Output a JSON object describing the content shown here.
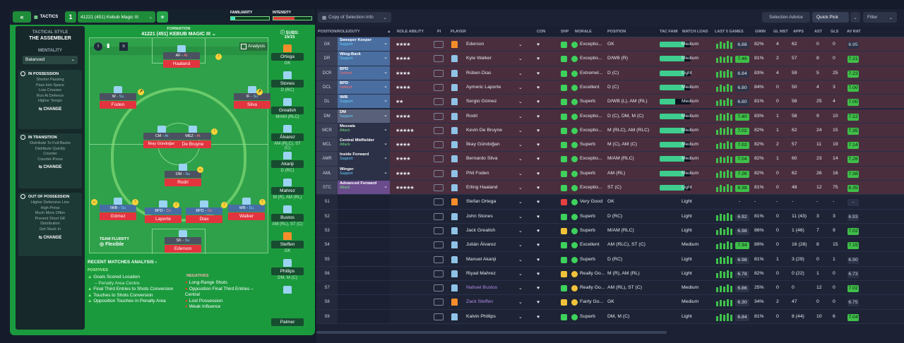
{
  "tactics": {
    "back": "«",
    "title": "TACTICS",
    "slot": "1",
    "name": "41221 (451) Kebub Magic III",
    "add": "+",
    "familiarity": "FAMILIARITY",
    "intensity": "INTENSITY"
  },
  "style": {
    "h": "TACTICAL STYLE",
    "v": "THE ASSEMBLER",
    "mh": "MENTALITY",
    "mv": "Balanced"
  },
  "in_possession": {
    "title": "IN POSSESSION",
    "items": [
      "Shorter Passing",
      "Pass Into Space",
      "Low Crosses",
      "Run At Defence",
      "Higher Tempo"
    ],
    "change": "CHANGE"
  },
  "in_transition": {
    "title": "IN TRANSITION",
    "items": [
      "Distribute To Full-Backs",
      "Distribute Quickly",
      "Counter",
      "Counter-Press"
    ],
    "change": "CHANGE"
  },
  "out_possession": {
    "title": "OUT OF POSSESSION",
    "items": [
      "Higher Defensive Line",
      "High Press",
      "Much More Often",
      "Prevent Short GK",
      "Distribution",
      "Get Stuck In"
    ],
    "change": "CHANGE"
  },
  "formation": {
    "label": "FORMATION",
    "name": "41221 (451) KEBUB MAGIC III",
    "analysis": "Analysis",
    "subs_label": "SUBS:",
    "subs_count": "15/15"
  },
  "pitch": [
    {
      "role": "AF",
      "duty": "At",
      "name": "Haaland"
    },
    {
      "role": "W",
      "duty": "Su",
      "name": "Foden"
    },
    {
      "role": "IF",
      "duty": "Su",
      "name": "Silva"
    },
    {
      "role": "CM",
      "duty": "At",
      "name": "İlkay Gündoğan"
    },
    {
      "role": "MEZ",
      "duty": "At",
      "name": "De Bruyne"
    },
    {
      "role": "DM",
      "duty": "Su",
      "name": "Rodri"
    },
    {
      "role": "IWB",
      "duty": "Su",
      "name": "Gómez"
    },
    {
      "role": "BPD",
      "duty": "De",
      "name": "Laporte"
    },
    {
      "role": "BPD",
      "duty": "De",
      "name": "Dias"
    },
    {
      "role": "WB",
      "duty": "Su",
      "name": "Walker"
    },
    {
      "role": "SK",
      "duty": "Su",
      "name": "Ederson"
    }
  ],
  "fluidity": {
    "label": "TEAM FLUIDITY",
    "value": "Flexible"
  },
  "subs": [
    {
      "n": "Ortega",
      "p": "GK"
    },
    {
      "n": "Stones",
      "p": "D (RC)"
    },
    {
      "n": "Grealish",
      "p": "M/AM (RLC)"
    },
    {
      "n": "Álvarez",
      "p": "AM (RLC), ST (C)"
    },
    {
      "n": "Akanji",
      "p": "D (RC)"
    },
    {
      "n": "Mahrez",
      "p": "M (R), AM (RL)"
    },
    {
      "n": "Bustos",
      "p": "AM (RL), ST (C)"
    },
    {
      "n": "Steffen",
      "p": "GK"
    },
    {
      "n": "Phillips",
      "p": "DM, M (C)"
    },
    {
      "n": "Palmer",
      "p": ""
    }
  ],
  "analysis": {
    "title": "RECENT MATCHES ANALYSIS ›",
    "pos_h": "POSITIVES",
    "neg_h": "NEGATIVES",
    "pos": [
      "Goals Scored Location",
      "– Penalty Area Centre",
      "Final Third Entries to Shots Conversion",
      "Touches to Shots Conversion",
      "Opposition Touches in Penalty Area"
    ],
    "neg": [
      "Long-Range Shots",
      "Opposition Final Third Entries – Central",
      "Lost Possession",
      "Weak Influence"
    ]
  },
  "toolbar": {
    "copy": "Copy of Selection Info",
    "advice": "Selection Advice",
    "quick": "Quick Pick",
    "filter": "Filter"
  },
  "columns": [
    "POSITION/ROLE/DUTY",
    "ROLE ABILITY",
    "PI",
    "PLAYER",
    "CON",
    "SHP",
    "MORALE",
    "POSITION",
    "TAC FAMI",
    "MATCH LOAD",
    "LAST 5 GAMES",
    "GWIN",
    "GL MST",
    "APPS",
    "AST",
    "GLS",
    "AV RAT"
  ],
  "rows": [
    {
      "pos": "GK",
      "r1": "Sweeper Keeper",
      "r2": "Support",
      "st": "★★★★",
      "p": "Ederson",
      "mo": "Exceptio...",
      "ps": "GK",
      "ml": "Medium",
      "l5": "6.88",
      "gw": "82%",
      "gm": "4",
      "ap": "62",
      "as": "0",
      "gl": "0",
      "ar": "6.95",
      "rc": "#4a6ea0",
      "dc": "#63d0ff",
      "tf": 0.8
    },
    {
      "pos": "DR",
      "r1": "Wing-Back",
      "r2": "Support",
      "st": "★★★★",
      "p": "Kyle Walker",
      "mo": "Exceptio...",
      "ps": "D/WB (R)",
      "ml": "Medium",
      "l5": "7.46",
      "gw": "81%",
      "gm": "2",
      "ap": "57",
      "as": "8",
      "gl": "0",
      "ar": "7.21",
      "rc": "#4a6ea0",
      "dc": "#63d0ff",
      "tf": 0.8
    },
    {
      "pos": "DCR",
      "r1": "BPD",
      "r2": "Defend",
      "st": "★★★★",
      "p": "Rúben Dias",
      "mo": "Extremel...",
      "ps": "D (C)",
      "ml": "Light",
      "l5": "6.84",
      "gw": "83%",
      "gm": "4",
      "ap": "59",
      "as": "5",
      "gl": "25",
      "ar": "7.23",
      "rc": "#4a6ea0",
      "dc": "#ff6a6a",
      "tf": 0.8
    },
    {
      "pos": "DCL",
      "r1": "BPD",
      "r2": "Defend",
      "st": "★★★★",
      "p": "Aymeric Laporte",
      "mo": "Excellent",
      "ps": "D (C)",
      "ml": "Medium",
      "l5": "6.80",
      "gw": "84%",
      "gm": "0",
      "ap": "50",
      "as": "4",
      "gl": "3",
      "ar": "7.00",
      "rc": "#4a6ea0",
      "dc": "#ff6a6a",
      "tf": 0.8
    },
    {
      "pos": "DL",
      "r1": "IWB",
      "r2": "Support",
      "st": "★★",
      "p": "Sergio Gómez",
      "mo": "Superb",
      "ps": "D/WB (L), AM (RL)",
      "ml": "Medium",
      "l5": "6.80",
      "gw": "81%",
      "gm": "0",
      "ap": "58",
      "as": "25",
      "gl": "4",
      "ar": "7.00",
      "rc": "#4a6ea0",
      "dc": "#63d0ff",
      "tf": 0.5
    },
    {
      "pos": "DM",
      "r1": "DM",
      "r2": "Support",
      "st": "★★★★",
      "p": "Rodri",
      "mo": "Exceptio...",
      "ps": "D (C), DM, M (C)",
      "ml": "Medium",
      "l5": "7.40",
      "gw": "83%",
      "gm": "1",
      "ap": "58",
      "as": "9",
      "gl": "10",
      "ar": "7.12",
      "rc": "#59607a",
      "dc": "#63d0ff",
      "tf": 0.8
    },
    {
      "pos": "MCR",
      "r1": "Mezzala",
      "r2": "Attack",
      "st": "★★★★★",
      "p": "Kevin De Bruyne",
      "mo": "Exceptio...",
      "ps": "M (RLC), AM (RLC)",
      "ml": "Medium",
      "l5": "7.02",
      "gw": "82%",
      "gm": "1",
      "ap": "62",
      "as": "24",
      "gl": "15",
      "ar": "7.35",
      "rc": "#2c3148",
      "dc": "#6de07a",
      "tf": 0.8
    },
    {
      "pos": "MCL",
      "r1": "Central Midfielder",
      "r2": "Attack",
      "st": "★★★★",
      "p": "İlkay Gündoğan",
      "mo": "Superb",
      "ps": "M (C), AM (C)",
      "ml": "Medium",
      "l5": "7.02",
      "gw": "82%",
      "gm": "2",
      "ap": "57",
      "as": "11",
      "gl": "19",
      "ar": "7.14",
      "rc": "#2c3148",
      "dc": "#6de07a",
      "tf": 0.8
    },
    {
      "pos": "AMR",
      "r1": "Inside Forward",
      "r2": "Support",
      "st": "★★★★",
      "p": "Bernardo Silva",
      "mo": "Exceptio...",
      "ps": "M/AM (RLC)",
      "ml": "Medium",
      "l5": "7.04",
      "gw": "82%",
      "gm": "1",
      "ap": "60",
      "as": "23",
      "gl": "14",
      "ar": "7.26",
      "rc": "#2c3148",
      "dc": "#63d0ff",
      "tf": 0.8
    },
    {
      "pos": "AML",
      "r1": "Winger",
      "r2": "Support",
      "st": "★★★★",
      "p": "Phil Foden",
      "mo": "Superb",
      "ps": "AM (RL)",
      "ml": "Medium",
      "l5": "7.26",
      "gw": "82%",
      "gm": "0",
      "ap": "62",
      "as": "26",
      "gl": "16",
      "ar": "7.38",
      "rc": "#2c3148",
      "dc": "#63d0ff",
      "tf": 0.8
    },
    {
      "pos": "STC",
      "r1": "Advanced Forward",
      "r2": "Attack",
      "st": "★★★★★",
      "p": "Erling Haaland",
      "mo": "Exceptio...",
      "ps": "ST (C)",
      "ml": "Light",
      "l5": "8.38",
      "gw": "81%",
      "gm": "0",
      "ap": "48",
      "as": "12",
      "gl": "75",
      "ar": "8.35",
      "rc": "#6a4b8c",
      "dc": "#6de07a",
      "tf": 0.8
    },
    {
      "pos": "S1",
      "p": "Stefan Ortega",
      "mo": "Very Good",
      "ps": "GK",
      "ml": "Light",
      "l5": "-",
      "gw": "-",
      "gm": "-",
      "ap": "-",
      "as": "-",
      "gl": "-",
      "ar": "-"
    },
    {
      "pos": "S2",
      "p": "John Stones",
      "mo": "Superb",
      "ps": "D (RC)",
      "ml": "Light",
      "l5": "6.92",
      "gw": "81%",
      "gm": "0",
      "ap": "11 (43)",
      "as": "3",
      "gl": "3",
      "ar": "6.93"
    },
    {
      "pos": "S3",
      "p": "Jack Grealish",
      "mo": "Superb",
      "ps": "M/AM (RLC)",
      "ml": "Light",
      "l5": "6.98",
      "gw": "86%",
      "gm": "0",
      "ap": "1 (46)",
      "as": "7",
      "gl": "9",
      "ar": "7.02"
    },
    {
      "pos": "S4",
      "p": "Julián Álvarez",
      "mo": "Excellent",
      "ps": "AM (RLC), ST (C)",
      "ml": "Medium",
      "l5": "7.34",
      "gw": "89%",
      "gm": "0",
      "ap": "16 (28)",
      "as": "8",
      "gl": "15",
      "ar": "7.15"
    },
    {
      "pos": "S5",
      "p": "Manuel Akanji",
      "mo": "Superb",
      "ps": "D (RC)",
      "ml": "Light",
      "l5": "6.98",
      "gw": "81%",
      "gm": "1",
      "ap": "3 (29)",
      "as": "0",
      "gl": "1",
      "ar": "6.90"
    },
    {
      "pos": "S6",
      "p": "Riyad Mahrez",
      "mo": "Really Go...",
      "ps": "M (R), AM (RL)",
      "ml": "Light",
      "l5": "6.78",
      "gw": "82%",
      "gm": "0",
      "ap": "0 (22)",
      "as": "1",
      "gl": "0",
      "ar": "6.73"
    },
    {
      "pos": "S7",
      "p": "Nahuel Bustos",
      "mo": "Really Go...",
      "ps": "AM (RL), ST (C)",
      "ml": "Medium",
      "l5": "6.86",
      "gw": "25%",
      "gm": "0",
      "ap": "0",
      "as": "12",
      "gl": "0",
      "ar": "7.02"
    },
    {
      "pos": "S8",
      "p": "Zack Steffen",
      "mo": "Fairly Go...",
      "ps": "GK",
      "ml": "Medium",
      "l5": "6.30",
      "gw": "34%",
      "gm": "2",
      "ap": "47",
      "as": "0",
      "gl": "0",
      "ar": "6.75"
    },
    {
      "pos": "S9",
      "p": "Kalvin Phillips",
      "mo": "Superb",
      "ps": "DM, M (C)",
      "ml": "Light",
      "l5": "6.84",
      "gw": "81%",
      "gm": "0",
      "ap": "8 (44)",
      "as": "10",
      "gl": "6",
      "ar": "7.04"
    }
  ]
}
